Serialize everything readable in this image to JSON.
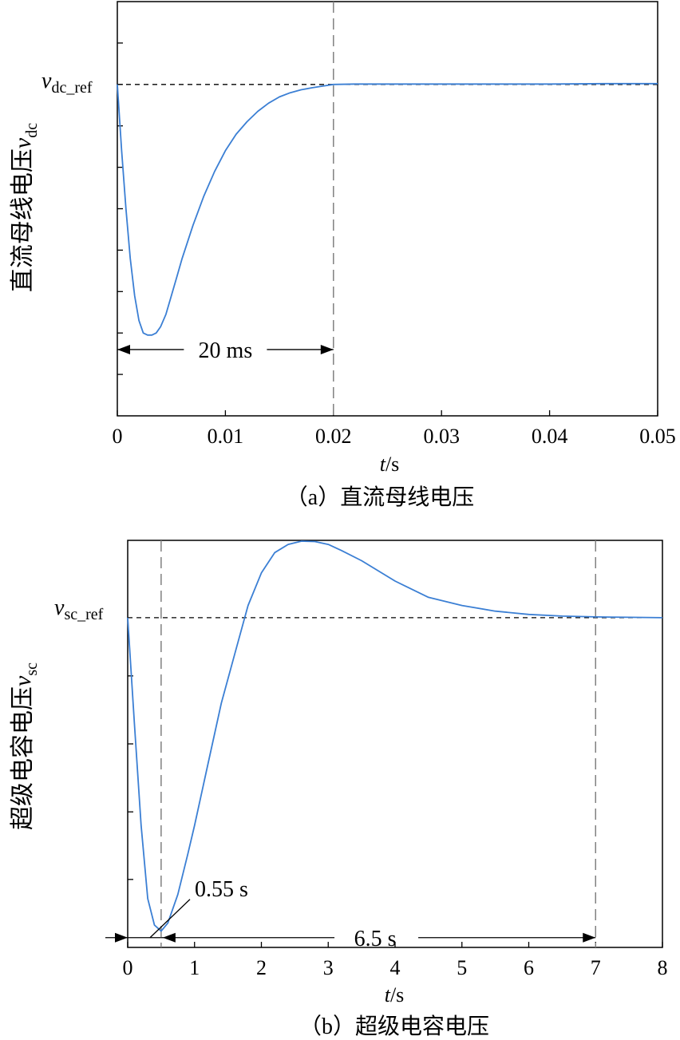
{
  "chart_data": [
    {
      "type": "line",
      "panel": "a",
      "caption": "（a）直流母线电压",
      "xlabel_italic": "t",
      "xlabel_unit": "/s",
      "ylabel_text": "直流母线电压",
      "ylabel_var": "v",
      "ylabel_sub": "dc",
      "xlim": [
        0,
        0.05
      ],
      "ylim": [
        0,
        1
      ],
      "x_ticks": [
        0,
        0.01,
        0.02,
        0.03,
        0.04,
        0.05
      ],
      "x_tick_labels": [
        "0",
        "0.01",
        "0.02",
        "0.03",
        "0.04",
        "0.05"
      ],
      "y_minor_ticks": [
        0.1,
        0.2,
        0.3,
        0.4,
        0.5,
        0.6,
        0.7,
        0.8,
        0.9
      ],
      "grid": false,
      "reference": {
        "var": "v",
        "sub": "dc_ref",
        "y": 0.8
      },
      "vline_x": 0.02,
      "annotation": {
        "text": "20 ms",
        "x_start": 0,
        "x_end": 0.02,
        "y": 0.16
      },
      "series": [
        {
          "color": "#3b7fd4",
          "x": [
            0,
            0.0004,
            0.0008,
            0.0012,
            0.0016,
            0.002,
            0.0024,
            0.0028,
            0.0032,
            0.0036,
            0.004,
            0.0045,
            0.005,
            0.0055,
            0.006,
            0.007,
            0.008,
            0.009,
            0.01,
            0.011,
            0.012,
            0.013,
            0.014,
            0.015,
            0.016,
            0.017,
            0.018,
            0.019,
            0.02,
            0.022,
            0.025,
            0.03,
            0.035,
            0.04,
            0.045,
            0.05
          ],
          "y": [
            0.8,
            0.64,
            0.5,
            0.38,
            0.29,
            0.23,
            0.2,
            0.195,
            0.195,
            0.2,
            0.215,
            0.245,
            0.29,
            0.335,
            0.38,
            0.46,
            0.53,
            0.59,
            0.64,
            0.68,
            0.71,
            0.735,
            0.755,
            0.77,
            0.78,
            0.787,
            0.792,
            0.796,
            0.8,
            0.801,
            0.801,
            0.801,
            0.801,
            0.801,
            0.802,
            0.802
          ]
        }
      ]
    },
    {
      "type": "line",
      "panel": "b",
      "caption": "（b）超级电容电压",
      "xlabel_italic": "t",
      "xlabel_unit": "/s",
      "ylabel_text": "超级电容电压",
      "ylabel_var": "v",
      "ylabel_sub": "sc",
      "xlim": [
        0,
        8
      ],
      "ylim": [
        0,
        1
      ],
      "x_ticks": [
        0,
        1,
        2,
        3,
        4,
        5,
        6,
        7,
        8
      ],
      "x_tick_labels": [
        "0",
        "1",
        "2",
        "3",
        "4",
        "5",
        "6",
        "7",
        "8"
      ],
      "y_minor_ticks": [
        0.167,
        0.333,
        0.5,
        0.667
      ],
      "grid": false,
      "reference": {
        "var": "v",
        "sub": "sc_ref",
        "y": 0.81
      },
      "vline_x": [
        0.5,
        7
      ],
      "annotations": [
        {
          "text": "0.55 s"
        },
        {
          "text": "6.5 s",
          "x_start": 0.5,
          "x_end": 7,
          "y": 0.024
        }
      ],
      "series": [
        {
          "color": "#3b7fd4",
          "x": [
            0,
            0.1,
            0.2,
            0.3,
            0.4,
            0.5,
            0.6,
            0.75,
            0.9,
            1.0,
            1.2,
            1.4,
            1.6,
            1.8,
            2.0,
            2.2,
            2.4,
            2.6,
            2.8,
            3.0,
            3.2,
            3.5,
            4.0,
            4.5,
            5.0,
            5.5,
            6.0,
            6.5,
            7.0,
            7.5,
            8.0
          ],
          "y": [
            0.81,
            0.55,
            0.3,
            0.12,
            0.055,
            0.04,
            0.06,
            0.13,
            0.23,
            0.3,
            0.45,
            0.6,
            0.72,
            0.84,
            0.92,
            0.97,
            0.99,
            0.998,
            0.997,
            0.99,
            0.975,
            0.95,
            0.9,
            0.86,
            0.84,
            0.826,
            0.818,
            0.814,
            0.812,
            0.811,
            0.81
          ]
        }
      ]
    }
  ]
}
